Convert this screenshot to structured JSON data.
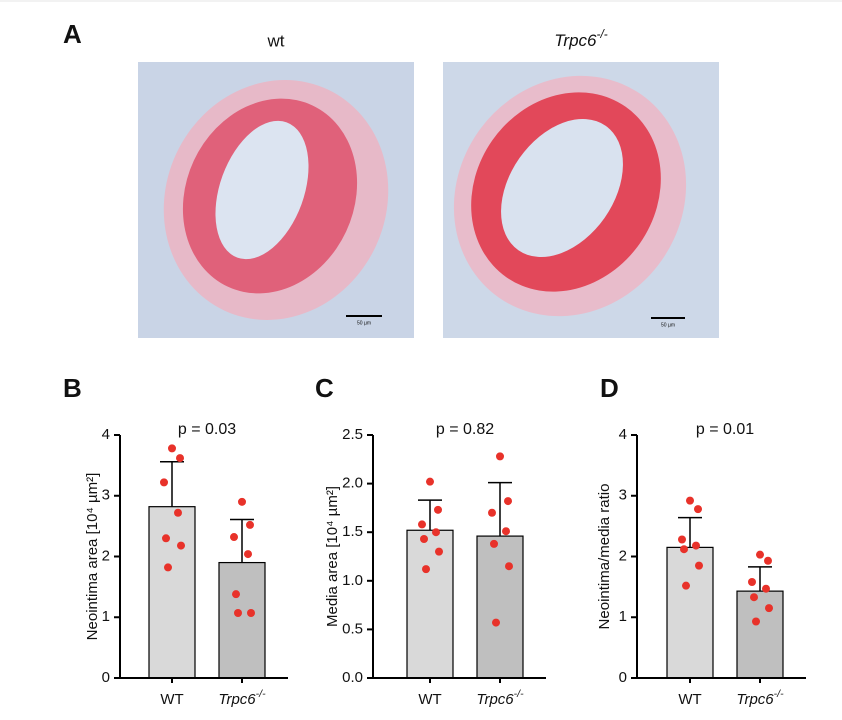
{
  "panel_a": {
    "label": "A",
    "titles": [
      "wt",
      "Trpc6-/-"
    ],
    "scale_bar": "50 µm"
  },
  "chart_data": [
    {
      "type": "bar",
      "label": "B",
      "annotation": "p = 0.03",
      "ylabel": "Neointima area [10⁴ µm²]",
      "categories": [
        "WT",
        "Trpc6-/-"
      ],
      "values": [
        2.82,
        1.9
      ],
      "errors": [
        0.74,
        0.71
      ],
      "colors": [
        "#d9d9d9",
        "#bfbfbf"
      ],
      "point_color": "#e8322a",
      "points": [
        [
          3.78,
          3.62,
          3.22,
          2.72,
          2.3,
          2.18,
          1.82
        ],
        [
          2.9,
          2.52,
          2.32,
          2.04,
          1.38,
          1.07,
          1.07
        ]
      ],
      "ylim": [
        0,
        4
      ],
      "yticks": [
        0,
        1,
        2,
        3,
        4
      ]
    },
    {
      "type": "bar",
      "label": "C",
      "annotation": "p = 0.82",
      "ylabel": "Media area [10⁴ µm²]",
      "categories": [
        "WT",
        "Trpc6-/-"
      ],
      "values": [
        1.52,
        1.46
      ],
      "errors": [
        0.31,
        0.55
      ],
      "colors": [
        "#d9d9d9",
        "#bfbfbf"
      ],
      "point_color": "#e8322a",
      "points": [
        [
          2.02,
          1.73,
          1.58,
          1.5,
          1.43,
          1.3,
          1.12
        ],
        [
          2.28,
          1.82,
          1.7,
          1.51,
          1.38,
          1.15,
          0.57
        ]
      ],
      "ylim": [
        0,
        2.5
      ],
      "yticks": [
        {
          "value": 0,
          "label": "0.0"
        },
        0.5,
        {
          "value": 1,
          "label": "1.0"
        },
        1.5,
        {
          "value": 2,
          "label": "2.0"
        },
        2.5
      ]
    },
    {
      "type": "bar",
      "label": "D",
      "annotation": "p = 0.01",
      "ylabel": "Neointima/media ratio",
      "categories": [
        "WT",
        "Trpc6-/-"
      ],
      "values": [
        2.15,
        1.43
      ],
      "errors": [
        0.49,
        0.4
      ],
      "colors": [
        "#d9d9d9",
        "#bfbfbf"
      ],
      "point_color": "#e8322a",
      "points": [
        [
          2.92,
          2.78,
          2.28,
          2.18,
          2.12,
          1.85,
          1.52
        ],
        [
          2.03,
          1.93,
          1.58,
          1.47,
          1.33,
          1.15,
          0.93
        ]
      ],
      "ylim": [
        0,
        4
      ],
      "yticks": [
        0,
        1,
        2,
        3,
        4
      ]
    }
  ]
}
